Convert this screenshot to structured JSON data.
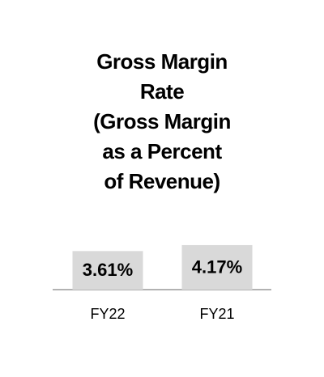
{
  "chart_data": {
    "type": "bar",
    "title": "Gross Margin\nRate\n(Gross Margin\nas a Percent\nof Revenue)",
    "categories": [
      "FY22",
      "FY21"
    ],
    "values": [
      3.61,
      4.17
    ],
    "value_labels": [
      "3.61%",
      "4.17%"
    ],
    "color": "#d9d9d9"
  }
}
